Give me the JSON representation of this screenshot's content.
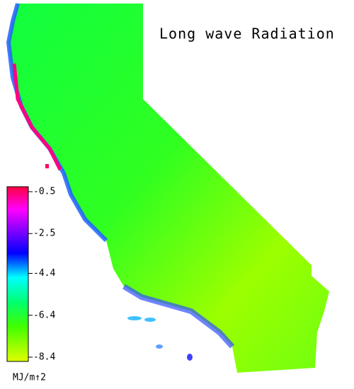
{
  "title": "Long wave Radiation",
  "colorbar": {
    "ticks": [
      -0.5,
      -2.5,
      -4.4,
      -6.4,
      -8.4
    ],
    "unit": "MJ/m↑2"
  }
}
